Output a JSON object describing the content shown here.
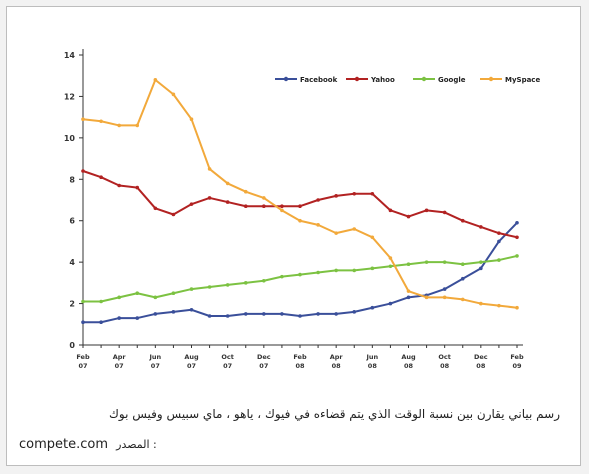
{
  "chart_data": {
    "type": "line",
    "title": "",
    "xlabel": "",
    "ylabel": "",
    "ylim": [
      0,
      14
    ],
    "y_ticks": [
      0,
      2,
      4,
      6,
      8,
      10,
      12,
      14
    ],
    "x_tick_labels": [
      [
        "Feb",
        "07"
      ],
      [
        "Apr",
        "07"
      ],
      [
        "Jun",
        "07"
      ],
      [
        "Aug",
        "07"
      ],
      [
        "Oct",
        "07"
      ],
      [
        "Dec",
        "07"
      ],
      [
        "Feb",
        "08"
      ],
      [
        "Apr",
        "08"
      ],
      [
        "Jun",
        "08"
      ],
      [
        "Aug",
        "08"
      ],
      [
        "Oct",
        "08"
      ],
      [
        "Dec",
        "08"
      ],
      [
        "Feb",
        "09"
      ]
    ],
    "x": [
      0,
      1,
      2,
      3,
      4,
      5,
      6,
      7,
      8,
      9,
      10,
      11,
      12,
      13,
      14,
      15,
      16,
      17,
      18,
      19,
      20,
      21,
      22,
      23,
      24
    ],
    "grid": false,
    "legend_position": "top-right",
    "series": [
      {
        "name": "Facebook",
        "color": "#3a4f9a",
        "values": [
          1.1,
          1.1,
          1.3,
          1.3,
          1.5,
          1.6,
          1.7,
          1.4,
          1.4,
          1.5,
          1.5,
          1.5,
          1.4,
          1.5,
          1.5,
          1.6,
          1.8,
          2.0,
          2.3,
          2.4,
          2.7,
          3.2,
          3.7,
          5.0,
          5.9
        ]
      },
      {
        "name": "Yahoo",
        "color": "#b22222",
        "values": [
          8.4,
          8.1,
          7.7,
          7.6,
          6.6,
          6.3,
          6.8,
          7.1,
          6.9,
          6.7,
          6.7,
          6.7,
          6.7,
          7.0,
          7.2,
          7.3,
          7.3,
          6.5,
          6.2,
          6.5,
          6.4,
          6.0,
          5.7,
          5.4,
          5.2
        ]
      },
      {
        "name": "Google",
        "color": "#7cc242",
        "values": [
          2.1,
          2.1,
          2.3,
          2.5,
          2.3,
          2.5,
          2.7,
          2.8,
          2.9,
          3.0,
          3.1,
          3.3,
          3.4,
          3.5,
          3.6,
          3.6,
          3.7,
          3.8,
          3.9,
          4.0,
          4.0,
          3.9,
          4.0,
          4.1,
          4.3
        ]
      },
      {
        "name": "MySpace",
        "color": "#f2a93b",
        "values": [
          10.9,
          10.8,
          10.6,
          10.6,
          12.8,
          12.1,
          10.9,
          8.5,
          7.8,
          7.4,
          7.1,
          6.5,
          6.0,
          5.8,
          5.4,
          5.6,
          5.2,
          4.2,
          2.6,
          2.3,
          2.3,
          2.2,
          2.0,
          1.9,
          1.8
        ]
      }
    ]
  },
  "caption": "رسم بياني يقارن بين نسبة الوقت الذي يتم قضاءه في فيوك ، ياهو ، ماي سبيس وفيس بوك",
  "source_label": "المصدر :",
  "source_site": "compete.com"
}
